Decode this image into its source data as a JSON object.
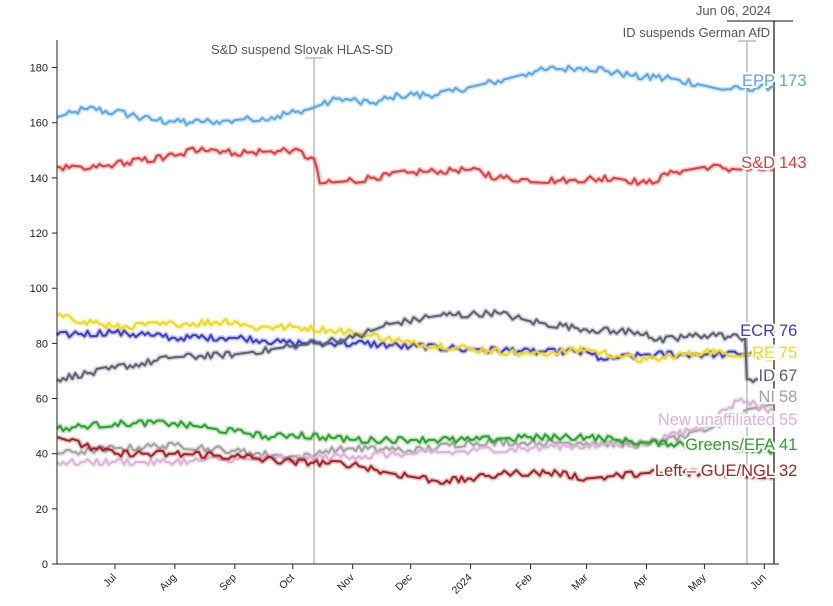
{
  "chart_data": {
    "type": "line",
    "title": "",
    "xlabel": "",
    "ylabel": "",
    "ylim": [
      0,
      190
    ],
    "yticks": [
      0,
      20,
      40,
      60,
      80,
      100,
      120,
      140,
      160,
      180
    ],
    "x_range": [
      "2023-06-01",
      "2024-06-06"
    ],
    "x_ticks": [
      {
        "label": "Jul",
        "date": "2023-07-01"
      },
      {
        "label": "Aug",
        "date": "2023-08-01"
      },
      {
        "label": "Sep",
        "date": "2023-09-01"
      },
      {
        "label": "Oct",
        "date": "2023-10-01"
      },
      {
        "label": "Nov",
        "date": "2023-11-01"
      },
      {
        "label": "Dec",
        "date": "2023-12-01"
      },
      {
        "label": "2024",
        "date": "2024-01-01"
      },
      {
        "label": "Feb",
        "date": "2024-02-01"
      },
      {
        "label": "Mar",
        "date": "2024-03-01"
      },
      {
        "label": "Apr",
        "date": "2024-04-01"
      },
      {
        "label": "May",
        "date": "2024-05-01"
      },
      {
        "label": "Jun",
        "date": "2024-06-01"
      }
    ],
    "annotations": [
      {
        "text": "S&D suspend Slovak HLAS-SD",
        "date": "2023-10-12"
      },
      {
        "text": "ID suspends German AfD",
        "date": "2024-05-23"
      },
      {
        "text": "Jun 06, 2024",
        "date": "2024-06-06"
      }
    ],
    "series": [
      {
        "name": "EPP",
        "color": "#5aa7e6",
        "final": 173,
        "points": [
          [
            "2023-06-01",
            162
          ],
          [
            "2023-06-15",
            165
          ],
          [
            "2023-07-01",
            164
          ],
          [
            "2023-07-20",
            161
          ],
          [
            "2023-08-10",
            160
          ],
          [
            "2023-09-01",
            161
          ],
          [
            "2023-09-20",
            162
          ],
          [
            "2023-10-10",
            165
          ],
          [
            "2023-10-25",
            169
          ],
          [
            "2023-11-10",
            167
          ],
          [
            "2023-11-25",
            170
          ],
          [
            "2023-12-15",
            170
          ],
          [
            "2024-01-01",
            173
          ],
          [
            "2024-01-20",
            176
          ],
          [
            "2024-02-05",
            179
          ],
          [
            "2024-03-01",
            180
          ],
          [
            "2024-03-25",
            177
          ],
          [
            "2024-04-15",
            176
          ],
          [
            "2024-05-10",
            172
          ],
          [
            "2024-06-06",
            173
          ]
        ]
      },
      {
        "name": "S&D",
        "color": "#e23b3b",
        "final": 143,
        "points": [
          [
            "2023-06-01",
            144
          ],
          [
            "2023-06-15",
            143
          ],
          [
            "2023-07-01",
            145
          ],
          [
            "2023-08-01",
            148
          ],
          [
            "2023-08-15",
            151
          ],
          [
            "2023-09-01",
            149
          ],
          [
            "2023-10-01",
            150
          ],
          [
            "2023-10-12",
            147
          ],
          [
            "2023-10-15",
            138
          ],
          [
            "2023-11-01",
            139
          ],
          [
            "2023-12-01",
            142
          ],
          [
            "2024-01-01",
            143
          ],
          [
            "2024-01-15",
            140
          ],
          [
            "2024-02-15",
            139
          ],
          [
            "2024-03-15",
            140
          ],
          [
            "2024-04-01",
            138
          ],
          [
            "2024-04-15",
            142
          ],
          [
            "2024-05-01",
            144
          ],
          [
            "2024-05-20",
            143
          ],
          [
            "2024-06-06",
            143
          ]
        ]
      },
      {
        "name": "ECR",
        "color": "#3a3acf",
        "final": 76,
        "points": [
          [
            "2023-06-01",
            83
          ],
          [
            "2023-07-01",
            84
          ],
          [
            "2023-08-01",
            82
          ],
          [
            "2023-09-01",
            82
          ],
          [
            "2023-10-01",
            80
          ],
          [
            "2023-11-01",
            80
          ],
          [
            "2023-12-01",
            79
          ],
          [
            "2024-01-01",
            78
          ],
          [
            "2024-02-01",
            77
          ],
          [
            "2024-03-01",
            77
          ],
          [
            "2024-03-10",
            74
          ],
          [
            "2024-04-01",
            76
          ],
          [
            "2024-05-01",
            76
          ],
          [
            "2024-06-06",
            76
          ]
        ]
      },
      {
        "name": "RE",
        "color": "#f2d81a",
        "final": 75,
        "points": [
          [
            "2023-06-01",
            90
          ],
          [
            "2023-06-15",
            88
          ],
          [
            "2023-07-01",
            86
          ],
          [
            "2023-08-01",
            87
          ],
          [
            "2023-09-01",
            88
          ],
          [
            "2023-09-10",
            86
          ],
          [
            "2023-10-01",
            86
          ],
          [
            "2023-11-01",
            84
          ],
          [
            "2023-12-01",
            80
          ],
          [
            "2024-01-01",
            78
          ],
          [
            "2024-02-01",
            76
          ],
          [
            "2024-03-01",
            78
          ],
          [
            "2024-03-20",
            75
          ],
          [
            "2024-04-01",
            74
          ],
          [
            "2024-05-01",
            77
          ],
          [
            "2024-05-23",
            76
          ],
          [
            "2024-06-06",
            75
          ]
        ]
      },
      {
        "name": "ID",
        "color": "#5a6070",
        "final": 67,
        "points": [
          [
            "2023-06-01",
            67
          ],
          [
            "2023-07-01",
            71
          ],
          [
            "2023-08-01",
            75
          ],
          [
            "2023-09-01",
            76
          ],
          [
            "2023-10-01",
            79
          ],
          [
            "2023-11-01",
            82
          ],
          [
            "2023-11-20",
            87
          ],
          [
            "2023-12-15",
            90
          ],
          [
            "2024-01-15",
            91
          ],
          [
            "2024-02-01",
            88
          ],
          [
            "2024-03-01",
            85
          ],
          [
            "2024-04-01",
            84
          ],
          [
            "2024-04-05",
            81
          ],
          [
            "2024-05-01",
            83
          ],
          [
            "2024-05-22",
            82
          ],
          [
            "2024-05-23",
            67
          ],
          [
            "2024-06-06",
            67
          ]
        ]
      },
      {
        "name": "NI",
        "color": "#a2a2a2",
        "final": 58,
        "points": [
          [
            "2023-06-01",
            40
          ],
          [
            "2023-07-01",
            42
          ],
          [
            "2023-08-01",
            43
          ],
          [
            "2023-09-01",
            41
          ],
          [
            "2023-10-01",
            39
          ],
          [
            "2023-10-12",
            39
          ],
          [
            "2023-10-15",
            41
          ],
          [
            "2023-11-01",
            42
          ],
          [
            "2023-12-01",
            41
          ],
          [
            "2024-01-01",
            44
          ],
          [
            "2024-02-01",
            44
          ],
          [
            "2024-03-01",
            44
          ],
          [
            "2024-04-01",
            43
          ],
          [
            "2024-05-01",
            48
          ],
          [
            "2024-05-23",
            56
          ],
          [
            "2024-06-06",
            58
          ]
        ]
      },
      {
        "name": "New unaffiliated",
        "color": "#dcb2d8",
        "final": 55,
        "points": [
          [
            "2023-06-01",
            37
          ],
          [
            "2023-07-01",
            37
          ],
          [
            "2023-08-01",
            37
          ],
          [
            "2023-09-01",
            38
          ],
          [
            "2023-10-01",
            38
          ],
          [
            "2023-11-01",
            39
          ],
          [
            "2023-12-01",
            40
          ],
          [
            "2024-01-01",
            41
          ],
          [
            "2024-02-01",
            42
          ],
          [
            "2024-03-01",
            43
          ],
          [
            "2024-04-01",
            44
          ],
          [
            "2024-05-01",
            50
          ],
          [
            "2024-05-20",
            60
          ],
          [
            "2024-06-06",
            55
          ]
        ]
      },
      {
        "name": "Greens/EFA",
        "color": "#2aa12a",
        "final": 41,
        "points": [
          [
            "2023-06-01",
            49
          ],
          [
            "2023-07-01",
            51
          ],
          [
            "2023-08-01",
            51
          ],
          [
            "2023-09-01",
            48
          ],
          [
            "2023-09-20",
            46
          ],
          [
            "2023-10-01",
            47
          ],
          [
            "2023-11-01",
            45
          ],
          [
            "2023-12-01",
            45
          ],
          [
            "2024-01-01",
            45
          ],
          [
            "2024-02-01",
            46
          ],
          [
            "2024-03-01",
            46
          ],
          [
            "2024-04-01",
            44
          ],
          [
            "2024-05-01",
            43
          ],
          [
            "2024-06-06",
            41
          ]
        ]
      },
      {
        "name": "Left – GUE/NGL",
        "color": "#a32222",
        "final": 32,
        "points": [
          [
            "2023-06-01",
            46
          ],
          [
            "2023-06-20",
            42
          ],
          [
            "2023-07-01",
            40
          ],
          [
            "2023-08-01",
            40
          ],
          [
            "2023-09-01",
            39
          ],
          [
            "2023-10-01",
            37
          ],
          [
            "2023-11-01",
            36
          ],
          [
            "2023-11-20",
            33
          ],
          [
            "2023-12-15",
            30
          ],
          [
            "2024-01-01",
            31
          ],
          [
            "2024-01-20",
            33
          ],
          [
            "2024-02-15",
            33
          ],
          [
            "2024-03-01",
            31
          ],
          [
            "2024-04-01",
            33
          ],
          [
            "2024-05-01",
            33
          ],
          [
            "2024-06-06",
            32
          ]
        ]
      }
    ]
  }
}
